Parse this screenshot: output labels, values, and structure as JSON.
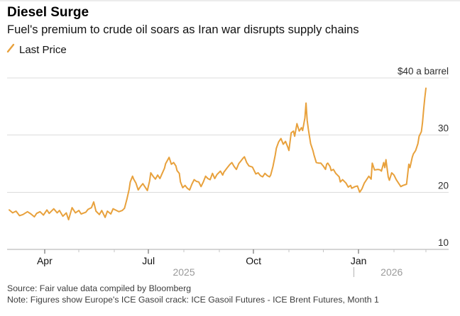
{
  "footer": {
    "source": "Source: Fair value data compiled by Bloomberg",
    "note": "Note: Figures show Europe's ICE Gasoil crack: ICE Gasoil Futures - ICE Brent Futures, Month 1"
  },
  "chart_data": {
    "type": "line",
    "title": "Diesel Surge",
    "subtitle": "Fuel's premium to crude oil soars as Iran war disrupts supply chains",
    "unit": "$ a barrel",
    "legend_position": "top-left",
    "grid": true,
    "y_axis": {
      "range": [
        10,
        40
      ],
      "ticks": [
        {
          "value": 40,
          "label": "$40 a barrel"
        },
        {
          "value": 30,
          "label": "30"
        },
        {
          "value": 20,
          "label": "20"
        },
        {
          "value": 10,
          "label": "10"
        }
      ]
    },
    "x_axis": {
      "start_date": "2025-03-01",
      "end_date": "2026-03-01",
      "months": [
        {
          "day": 31,
          "label": "Apr",
          "major": true
        },
        {
          "day": 61,
          "label": "",
          "major": false
        },
        {
          "day": 92,
          "label": "",
          "major": false
        },
        {
          "day": 122,
          "label": "Jul",
          "major": true
        },
        {
          "day": 153,
          "label": "",
          "major": false
        },
        {
          "day": 184,
          "label": "",
          "major": false
        },
        {
          "day": 214,
          "label": "Oct",
          "major": true
        },
        {
          "day": 245,
          "label": "",
          "major": false
        },
        {
          "day": 275,
          "label": "",
          "major": false
        },
        {
          "day": 306,
          "label": "Jan",
          "major": true
        },
        {
          "day": 337,
          "label": "",
          "major": false
        },
        {
          "day": 365,
          "label": "",
          "major": false
        }
      ],
      "years": [
        {
          "label": "2025",
          "day": 153
        },
        {
          "label": "2026",
          "day": 335
        }
      ],
      "year_divider_day": 302
    },
    "series": [
      {
        "name": "Last Price",
        "color": "#E8A13C",
        "points": [
          [
            0,
            16.9
          ],
          [
            3,
            16.4
          ],
          [
            6,
            16.7
          ],
          [
            9,
            15.9
          ],
          [
            12,
            16.1
          ],
          [
            16,
            16.6
          ],
          [
            19,
            16.2
          ],
          [
            22,
            15.7
          ],
          [
            24,
            16.3
          ],
          [
            27,
            16.6
          ],
          [
            30,
            16.0
          ],
          [
            33,
            16.9
          ],
          [
            35,
            16.3
          ],
          [
            39,
            17.1
          ],
          [
            42,
            16.4
          ],
          [
            44,
            16.8
          ],
          [
            47,
            15.8
          ],
          [
            50,
            16.4
          ],
          [
            52,
            15.2
          ],
          [
            55,
            17.3
          ],
          [
            58,
            16.4
          ],
          [
            61,
            16.8
          ],
          [
            63,
            16.2
          ],
          [
            67,
            16.5
          ],
          [
            69,
            17.0
          ],
          [
            72,
            17.3
          ],
          [
            74,
            18.3
          ],
          [
            76,
            16.7
          ],
          [
            79,
            16.1
          ],
          [
            81,
            16.8
          ],
          [
            84,
            15.6
          ],
          [
            86,
            16.7
          ],
          [
            89,
            16.2
          ],
          [
            91,
            17.1
          ],
          [
            94,
            16.8
          ],
          [
            96,
            16.6
          ],
          [
            99,
            16.8
          ],
          [
            101,
            17.2
          ],
          [
            103,
            18.7
          ],
          [
            105,
            20.5
          ],
          [
            106,
            21.8
          ],
          [
            108,
            22.8
          ],
          [
            109,
            22.3
          ],
          [
            111,
            21.6
          ],
          [
            113,
            20.4
          ],
          [
            115,
            21.0
          ],
          [
            117,
            21.5
          ],
          [
            119,
            20.9
          ],
          [
            121,
            20.3
          ],
          [
            123,
            22.0
          ],
          [
            124,
            23.4
          ],
          [
            126,
            22.8
          ],
          [
            128,
            22.3
          ],
          [
            130,
            23.0
          ],
          [
            132,
            22.4
          ],
          [
            134,
            23.3
          ],
          [
            136,
            24.2
          ],
          [
            137,
            25.0
          ],
          [
            140,
            26.1
          ],
          [
            142,
            24.9
          ],
          [
            144,
            25.2
          ],
          [
            146,
            24.6
          ],
          [
            147,
            23.8
          ],
          [
            149,
            23.3
          ],
          [
            150,
            21.8
          ],
          [
            152,
            20.8
          ],
          [
            154,
            21.2
          ],
          [
            156,
            20.7
          ],
          [
            158,
            20.4
          ],
          [
            160,
            21.4
          ],
          [
            162,
            22.2
          ],
          [
            164,
            21.9
          ],
          [
            166,
            21.8
          ],
          [
            168,
            21.0
          ],
          [
            170,
            21.8
          ],
          [
            172,
            22.8
          ],
          [
            174,
            22.4
          ],
          [
            176,
            22.2
          ],
          [
            178,
            23.3
          ],
          [
            180,
            22.4
          ],
          [
            182,
            23.1
          ],
          [
            185,
            23.7
          ],
          [
            187,
            23.0
          ],
          [
            188,
            23.5
          ],
          [
            191,
            24.3
          ],
          [
            193,
            24.8
          ],
          [
            195,
            25.2
          ],
          [
            197,
            24.5
          ],
          [
            199,
            24.0
          ],
          [
            201,
            25.0
          ],
          [
            203,
            25.5
          ],
          [
            205,
            26.0
          ],
          [
            206,
            26.2
          ],
          [
            208,
            25.2
          ],
          [
            210,
            24.6
          ],
          [
            213,
            24.4
          ],
          [
            215,
            23.6
          ],
          [
            216,
            23.2
          ],
          [
            218,
            23.4
          ],
          [
            220,
            22.9
          ],
          [
            222,
            22.7
          ],
          [
            224,
            23.3
          ],
          [
            226,
            22.9
          ],
          [
            228,
            22.7
          ],
          [
            229,
            23.0
          ],
          [
            231,
            24.5
          ],
          [
            233,
            26.5
          ],
          [
            234,
            27.7
          ],
          [
            236,
            28.8
          ],
          [
            238,
            29.4
          ],
          [
            240,
            28.4
          ],
          [
            242,
            28.9
          ],
          [
            244,
            27.9
          ],
          [
            245,
            27.3
          ],
          [
            247,
            30.4
          ],
          [
            249,
            30.7
          ],
          [
            250,
            29.8
          ],
          [
            252,
            32.0
          ],
          [
            254,
            30.7
          ],
          [
            256,
            31.3
          ],
          [
            257,
            30.8
          ],
          [
            259,
            33.0
          ],
          [
            260,
            35.6
          ],
          [
            261,
            32.6
          ],
          [
            262,
            31.0
          ],
          [
            264,
            28.5
          ],
          [
            266,
            27.3
          ],
          [
            267,
            26.5
          ],
          [
            269,
            25.2
          ],
          [
            271,
            25.1
          ],
          [
            273,
            25.1
          ],
          [
            275,
            24.6
          ],
          [
            277,
            24.0
          ],
          [
            278,
            24.9
          ],
          [
            279,
            25.1
          ],
          [
            281,
            24.5
          ],
          [
            282,
            23.8
          ],
          [
            284,
            24.0
          ],
          [
            286,
            23.3
          ],
          [
            289,
            22.7
          ],
          [
            290,
            21.8
          ],
          [
            292,
            22.2
          ],
          [
            295,
            21.6
          ],
          [
            297,
            20.9
          ],
          [
            299,
            21.2
          ],
          [
            300,
            20.7
          ],
          [
            303,
            21.0
          ],
          [
            305,
            21.1
          ],
          [
            307,
            20.0
          ],
          [
            309,
            20.6
          ],
          [
            311,
            21.6
          ],
          [
            313,
            22.2
          ],
          [
            315,
            22.8
          ],
          [
            317,
            22.3
          ],
          [
            318,
            25.1
          ],
          [
            320,
            23.9
          ],
          [
            323,
            24.0
          ],
          [
            325,
            23.9
          ],
          [
            326,
            23.7
          ],
          [
            328,
            25.2
          ],
          [
            329,
            24.3
          ],
          [
            330,
            25.7
          ],
          [
            332,
            22.7
          ],
          [
            333,
            22.1
          ],
          [
            335,
            23.4
          ],
          [
            337,
            23.0
          ],
          [
            339,
            22.2
          ],
          [
            341,
            21.6
          ],
          [
            343,
            21.0
          ],
          [
            345,
            21.2
          ],
          [
            348,
            21.4
          ],
          [
            350,
            24.9
          ],
          [
            351,
            24.3
          ],
          [
            353,
            26.1
          ],
          [
            354,
            26.7
          ],
          [
            356,
            27.3
          ],
          [
            358,
            28.5
          ],
          [
            359,
            29.8
          ],
          [
            361,
            30.6
          ],
          [
            362,
            32.2
          ],
          [
            363,
            34.5
          ],
          [
            364,
            36.5
          ],
          [
            365,
            38.2
          ]
        ]
      }
    ]
  }
}
